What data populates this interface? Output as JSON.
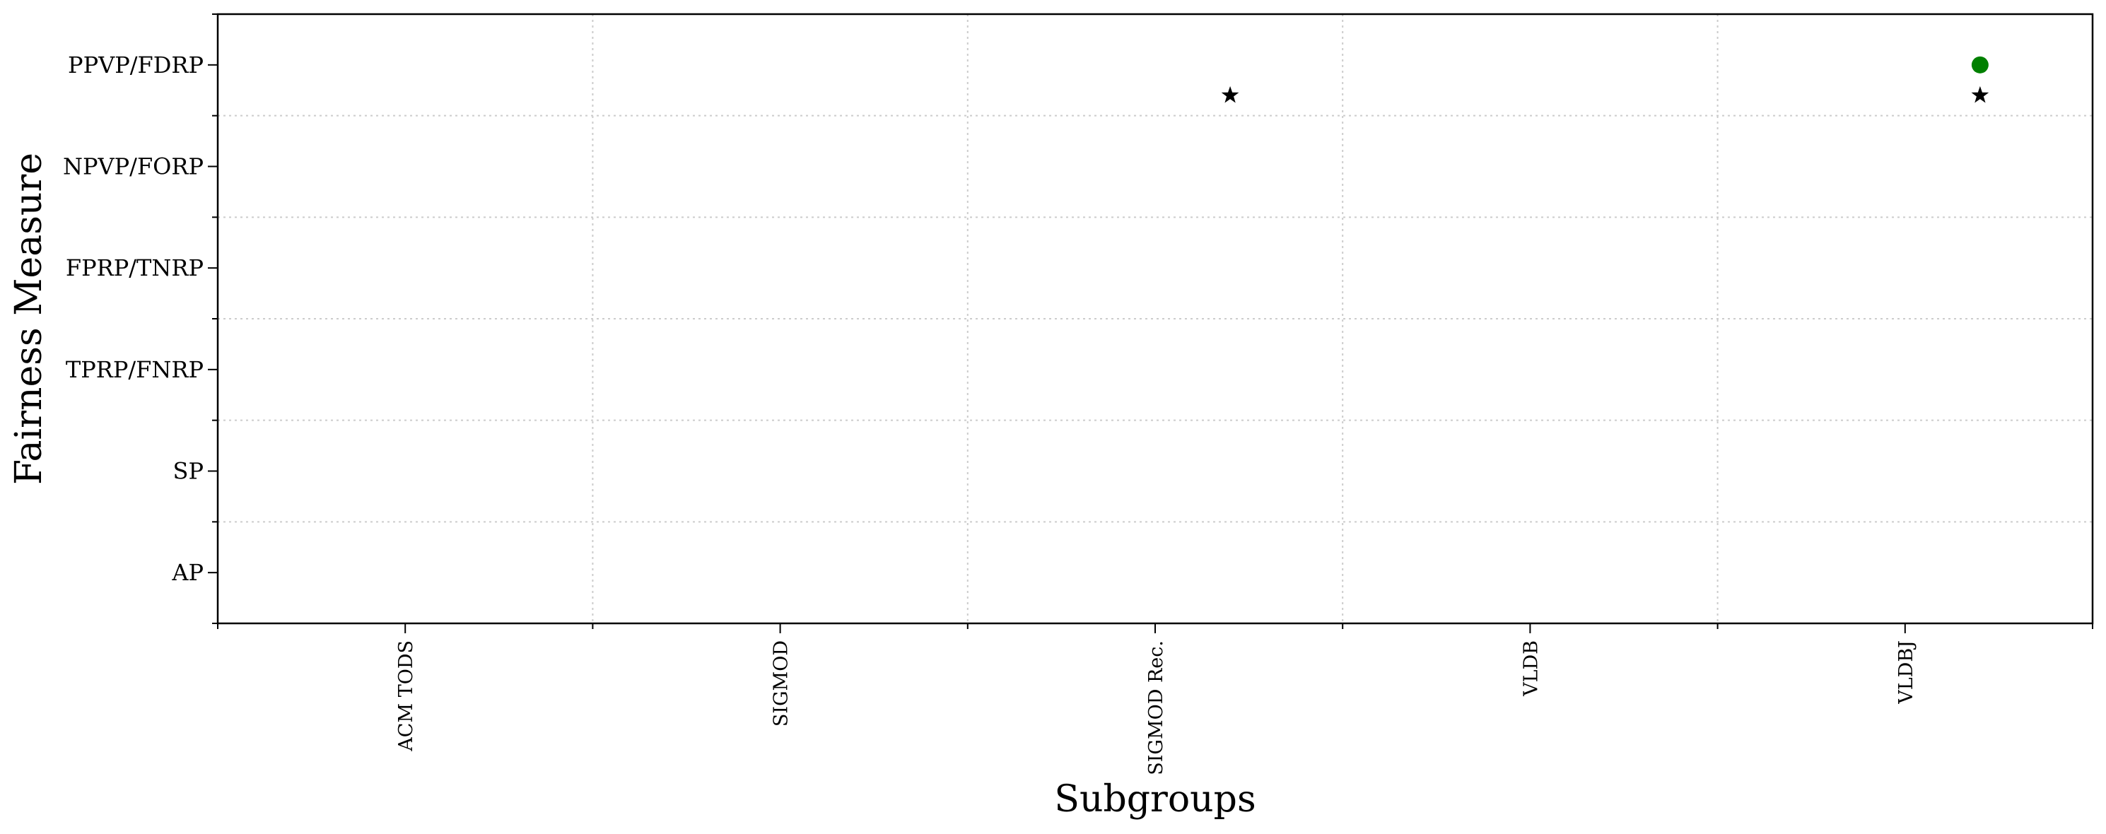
{
  "chart_data": {
    "type": "scatter",
    "title": "",
    "xlabel": "Subgroups",
    "ylabel": "Fairness Measure",
    "categories": [
      "ACM TODS",
      "SIGMOD",
      "SIGMOD Rec.",
      "VLDB",
      "VLDBJ"
    ],
    "y_categories": [
      "AP",
      "SP",
      "TPRP/FNRP",
      "FPRP/TNRP",
      "NPVP/FORP",
      "PPVP/FDRP"
    ],
    "grid": true,
    "legend": "none",
    "series": [
      {
        "marker": "circle",
        "color": "#008000",
        "points": [
          {
            "x": "VLDBJ",
            "x_offset": 0.2,
            "y": "PPVP/FDRP",
            "y_offset": 0
          }
        ]
      },
      {
        "marker": "star",
        "color": "#000000",
        "points": [
          {
            "x": "SIGMOD Rec.",
            "x_offset": 0.2,
            "y": "PPVP/FDRP",
            "y_offset": -0.3
          },
          {
            "x": "VLDBJ",
            "x_offset": 0.2,
            "y": "PPVP/FDRP",
            "y_offset": -0.3
          }
        ]
      }
    ]
  }
}
